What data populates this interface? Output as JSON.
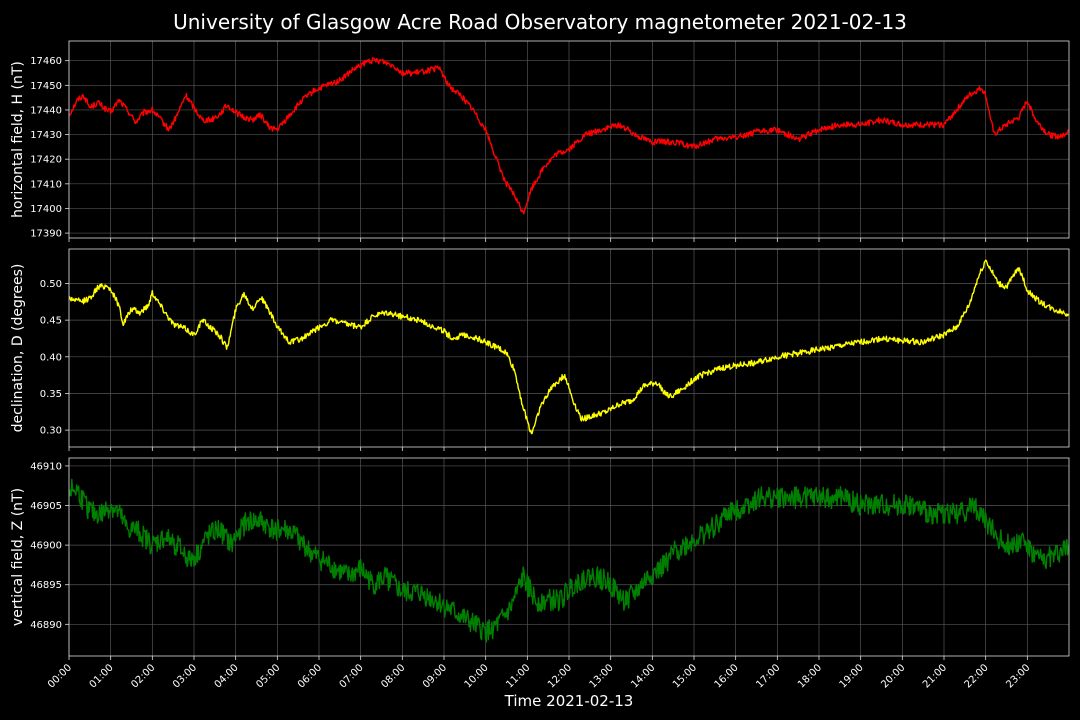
{
  "chart_data": {
    "title": "University of Glasgow Acre Road Observatory magnetometer 2021-02-13",
    "xlabel": "Time 2021-02-13",
    "xlim": [
      0,
      24
    ],
    "x_tick_labels": [
      "00:00",
      "01:00",
      "02:00",
      "03:00",
      "04:00",
      "05:00",
      "06:00",
      "07:00",
      "08:00",
      "09:00",
      "10:00",
      "11:00",
      "12:00",
      "13:00",
      "14:00",
      "15:00",
      "16:00",
      "17:00",
      "18:00",
      "19:00",
      "20:00",
      "21:00",
      "22:00",
      "23:00"
    ],
    "grid": true,
    "panels": [
      {
        "type": "line",
        "ylabel": "horizontal field, H (nT)",
        "color": "#ff0000",
        "ylim": [
          17388,
          17468
        ],
        "yticks": [
          17390,
          17400,
          17410,
          17420,
          17430,
          17440,
          17450,
          17460
        ],
        "noise": 1.2,
        "x": [
          0,
          0.2,
          0.35,
          0.5,
          0.7,
          0.9,
          1.0,
          1.2,
          1.4,
          1.6,
          1.8,
          2.0,
          2.2,
          2.4,
          2.6,
          2.8,
          3.0,
          3.2,
          3.4,
          3.6,
          3.8,
          4.0,
          4.2,
          4.4,
          4.6,
          4.8,
          5.0,
          5.3,
          5.6,
          5.9,
          6.2,
          6.5,
          6.8,
          7.0,
          7.2,
          7.5,
          7.8,
          8.0,
          8.3,
          8.6,
          8.9,
          9.1,
          9.4,
          9.7,
          10.0,
          10.3,
          10.5,
          10.7,
          10.9,
          11.1,
          11.4,
          11.7,
          12.0,
          12.4,
          12.8,
          13.2,
          13.6,
          14.0,
          14.5,
          15.0,
          15.5,
          16.0,
          16.5,
          17.0,
          17.5,
          18.0,
          18.5,
          19.0,
          19.5,
          20.0,
          20.5,
          21.0,
          21.3,
          21.6,
          21.9,
          22.0,
          22.2,
          22.5,
          22.8,
          23.0,
          23.2,
          23.5,
          23.8,
          24.0
        ],
        "y": [
          17438,
          17444,
          17446,
          17441,
          17443,
          17440,
          17439,
          17444,
          17440,
          17435,
          17439,
          17440,
          17436,
          17432,
          17438,
          17446,
          17441,
          17436,
          17436,
          17438,
          17442,
          17439,
          17437,
          17436,
          17438,
          17433,
          17432,
          17438,
          17444,
          17448,
          17450,
          17452,
          17456,
          17458,
          17460,
          17460,
          17458,
          17455,
          17455,
          17456,
          17457,
          17450,
          17446,
          17440,
          17432,
          17418,
          17410,
          17405,
          17398,
          17408,
          17417,
          17422,
          17424,
          17430,
          17432,
          17434,
          17430,
          17427,
          17427,
          17425,
          17428,
          17429,
          17431,
          17432,
          17428,
          17432,
          17434,
          17434,
          17436,
          17434,
          17434,
          17434,
          17440,
          17446,
          17449,
          17446,
          17430,
          17434,
          17437,
          17444,
          17436,
          17430,
          17429,
          17432
        ]
      },
      {
        "type": "line",
        "ylabel": "declination, D (degrees)",
        "color": "#ffff00",
        "ylim": [
          0.277,
          0.547
        ],
        "yticks": [
          0.3,
          0.35,
          0.4,
          0.45,
          0.5
        ],
        "yticklabels": [
          "0.30",
          "0.35",
          "0.40",
          "0.45",
          "0.50"
        ],
        "noise": 0.004,
        "x": [
          0,
          0.3,
          0.5,
          0.7,
          0.9,
          1.0,
          1.2,
          1.3,
          1.5,
          1.7,
          1.9,
          2.0,
          2.2,
          2.5,
          2.8,
          3.0,
          3.2,
          3.4,
          3.6,
          3.8,
          4.0,
          4.2,
          4.4,
          4.6,
          4.8,
          5.0,
          5.3,
          5.6,
          6.0,
          6.3,
          6.6,
          7.0,
          7.3,
          7.6,
          8.0,
          8.4,
          8.8,
          9.0,
          9.2,
          9.5,
          9.8,
          10.0,
          10.3,
          10.5,
          10.7,
          10.9,
          11.1,
          11.3,
          11.6,
          11.9,
          12.1,
          12.3,
          12.6,
          12.9,
          13.2,
          13.5,
          13.8,
          14.1,
          14.4,
          14.7,
          15.0,
          15.3,
          15.7,
          16.0,
          16.5,
          17.0,
          17.5,
          18.0,
          18.5,
          19.0,
          19.5,
          20.0,
          20.5,
          21.0,
          21.3,
          21.6,
          21.8,
          22.0,
          22.3,
          22.5,
          22.8,
          23.0,
          23.3,
          23.6,
          24.0
        ],
        "y": [
          0.48,
          0.475,
          0.48,
          0.495,
          0.497,
          0.492,
          0.47,
          0.445,
          0.465,
          0.46,
          0.47,
          0.488,
          0.47,
          0.445,
          0.438,
          0.43,
          0.45,
          0.44,
          0.43,
          0.412,
          0.465,
          0.487,
          0.465,
          0.482,
          0.463,
          0.44,
          0.42,
          0.425,
          0.44,
          0.45,
          0.445,
          0.44,
          0.455,
          0.46,
          0.455,
          0.45,
          0.44,
          0.435,
          0.425,
          0.43,
          0.425,
          0.42,
          0.412,
          0.405,
          0.38,
          0.33,
          0.295,
          0.33,
          0.36,
          0.375,
          0.34,
          0.315,
          0.32,
          0.325,
          0.335,
          0.34,
          0.36,
          0.365,
          0.345,
          0.355,
          0.37,
          0.378,
          0.385,
          0.388,
          0.392,
          0.4,
          0.405,
          0.41,
          0.415,
          0.42,
          0.425,
          0.422,
          0.42,
          0.43,
          0.44,
          0.47,
          0.505,
          0.532,
          0.5,
          0.495,
          0.522,
          0.49,
          0.475,
          0.465,
          0.458
        ]
      },
      {
        "type": "line",
        "ylabel": "vertical field, Z (nT)",
        "color": "#008000",
        "ylim": [
          46886,
          46911
        ],
        "yticks": [
          46890,
          46895,
          46900,
          46905,
          46910
        ],
        "noise": 1.4,
        "x": [
          0,
          0.2,
          0.4,
          0.6,
          0.8,
          1.0,
          1.2,
          1.4,
          1.6,
          1.8,
          2.0,
          2.3,
          2.6,
          2.9,
          3.1,
          3.3,
          3.6,
          3.9,
          4.1,
          4.3,
          4.6,
          4.9,
          5.2,
          5.5,
          5.8,
          6.1,
          6.4,
          6.7,
          7.0,
          7.3,
          7.6,
          8.0,
          8.4,
          8.8,
          9.1,
          9.4,
          9.7,
          10.0,
          10.3,
          10.6,
          10.9,
          11.2,
          11.5,
          11.8,
          12.1,
          12.4,
          12.7,
          13.0,
          13.3,
          13.6,
          13.9,
          14.2,
          14.5,
          14.8,
          15.1,
          15.4,
          15.8,
          16.2,
          16.6,
          17.0,
          17.4,
          17.8,
          18.2,
          18.6,
          19.0,
          19.4,
          19.8,
          20.2,
          20.6,
          21.0,
          21.4,
          21.7,
          22.0,
          22.3,
          22.6,
          22.9,
          23.1,
          23.4,
          23.7,
          24.0
        ],
        "y": [
          46907,
          46907,
          46905,
          46904,
          46904,
          46905,
          46904,
          46902,
          46902,
          46901,
          46900,
          46901,
          46900,
          46898,
          46899,
          46901,
          46902,
          46900,
          46902,
          46903,
          46903,
          46902,
          46902,
          46901,
          46899,
          46898,
          46897,
          46896,
          46897,
          46895,
          46896,
          46894,
          46894,
          46893,
          46892,
          46891,
          46890,
          46889,
          46890,
          46892,
          46896,
          46893,
          46893,
          46893,
          46895,
          46896,
          46896,
          46895,
          46893,
          46894,
          46896,
          46897,
          46899,
          46900,
          46901,
          46902,
          46904,
          46905,
          46906,
          46906,
          46906,
          46906,
          46906,
          46906,
          46905,
          46905,
          46905,
          46905,
          46904,
          46904,
          46904,
          46905,
          46903,
          46901,
          46900,
          46901,
          46899,
          46898,
          46899,
          46900
        ]
      }
    ]
  }
}
